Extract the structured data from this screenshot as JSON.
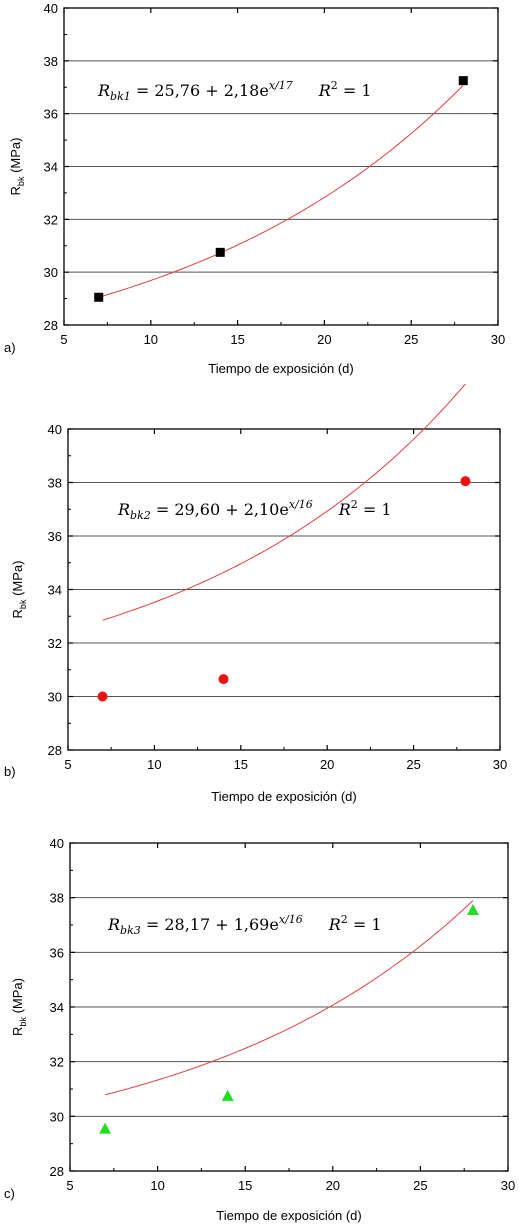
{
  "chart_data": [
    {
      "type": "scatter",
      "panel_label": "a)",
      "xlabel": "Tiempo de exposición (d)",
      "ylabel_main": "R",
      "ylabel_sub": "bk",
      "ylabel_unit": " (MPa)",
      "xlim": [
        5,
        30
      ],
      "ylim": [
        28,
        40
      ],
      "xticks": [
        "5",
        "10",
        "15",
        "20",
        "25",
        "30"
      ],
      "yticks": [
        "28",
        "30",
        "32",
        "34",
        "36",
        "38",
        "40"
      ],
      "grid": "horizontal",
      "marker": "square",
      "marker_color": "#000000",
      "fit_color": "#e04040",
      "fit": {
        "a": 25.76,
        "b": 2.18,
        "t": 17
      },
      "equation": {
        "lhs_sub": "bk1",
        "rhs": "= 25,76 + 2,18e",
        "exp": "x/17",
        "r2": "= 1"
      },
      "series": [
        {
          "x": [
            7,
            14,
            28
          ],
          "y": [
            29.05,
            30.75,
            37.25
          ]
        }
      ]
    },
    {
      "type": "scatter",
      "panel_label": "b)",
      "xlabel": "Tiempo de exposición (d)",
      "ylabel_main": "R",
      "ylabel_sub": "bk",
      "ylabel_unit": " (MPa)",
      "xlim": [
        5,
        30
      ],
      "ylim": [
        28,
        40
      ],
      "xticks": [
        "5",
        "10",
        "15",
        "20",
        "25",
        "30"
      ],
      "yticks": [
        "28",
        "30",
        "32",
        "34",
        "36",
        "38",
        "40"
      ],
      "grid": "horizontal",
      "marker": "circle",
      "marker_color": "#ee1111",
      "fit_color": "#e04040",
      "fit": {
        "a": 29.6,
        "b": 2.1,
        "t": 16
      },
      "equation": {
        "lhs_sub": "bk2",
        "rhs": "= 29,60 + 2,10e",
        "exp": "x/16",
        "r2": "= 1"
      },
      "series": [
        {
          "x": [
            7,
            14,
            28
          ],
          "y": [
            30.0,
            30.65,
            38.05
          ]
        }
      ]
    },
    {
      "type": "scatter",
      "panel_label": "c)",
      "xlabel": "Tiempo de exposición (d)",
      "ylabel_main": "R",
      "ylabel_sub": "bk",
      "ylabel_unit": " (MPa)",
      "xlim": [
        5,
        30
      ],
      "ylim": [
        28,
        40
      ],
      "xticks": [
        "5",
        "10",
        "15",
        "20",
        "25",
        "30"
      ],
      "yticks": [
        "28",
        "30",
        "32",
        "34",
        "36",
        "38",
        "40"
      ],
      "grid": "horizontal",
      "marker": "triangle",
      "marker_color": "#22dd22",
      "fit_color": "#e04040",
      "fit": {
        "a": 28.17,
        "b": 1.69,
        "t": 16
      },
      "equation": {
        "lhs_sub": "bk3",
        "rhs": "= 28,17 + 1,69e",
        "exp": "x/16",
        "r2": "= 1"
      },
      "series": [
        {
          "x": [
            7,
            14,
            28
          ],
          "y": [
            29.55,
            30.75,
            37.55
          ]
        }
      ]
    }
  ]
}
